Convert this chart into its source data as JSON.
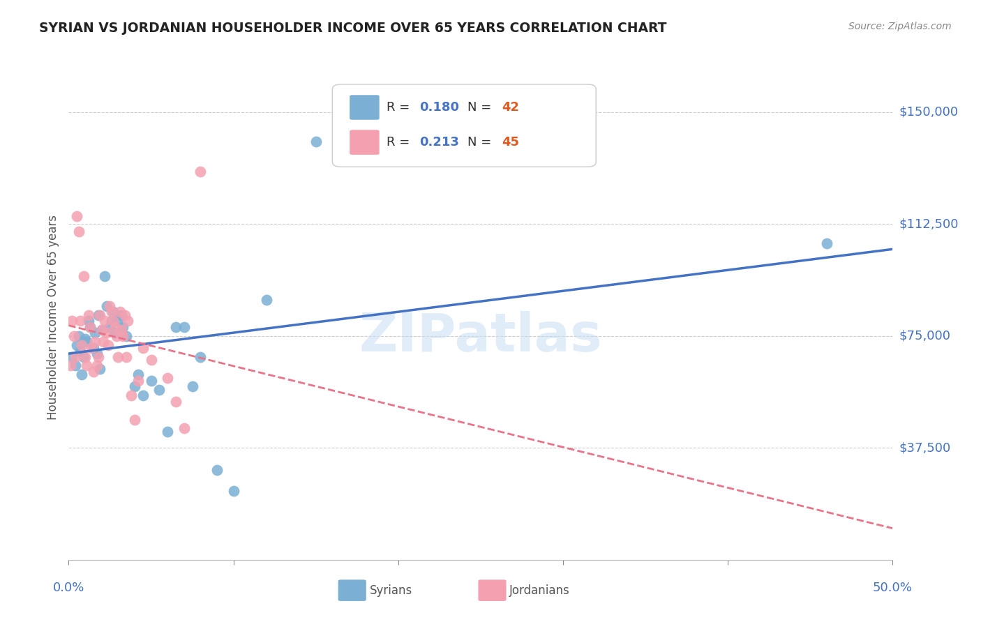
{
  "title": "SYRIAN VS JORDANIAN HOUSEHOLDER INCOME OVER 65 YEARS CORRELATION CHART",
  "source": "Source: ZipAtlas.com",
  "ylabel": "Householder Income Over 65 years",
  "xlim": [
    0.0,
    0.5
  ],
  "ylim": [
    0,
    162500
  ],
  "yticks": [
    37500,
    75000,
    112500,
    150000
  ],
  "ytick_labels": [
    "$37,500",
    "$75,000",
    "$112,500",
    "$150,000"
  ],
  "xticks": [
    0.0,
    0.1,
    0.2,
    0.3,
    0.4,
    0.5
  ],
  "syrian_color": "#7bafd4",
  "jordanian_color": "#f4a0b0",
  "syrian_line_color": "#4472c4",
  "jordanian_line_color": "#e8748a",
  "background_color": "#ffffff",
  "grid_color": "#cccccc",
  "R_syrian": 0.18,
  "N_syrian": 42,
  "R_jordanian": 0.213,
  "N_jordanian": 45,
  "watermark": "ZIPatlas",
  "title_color": "#222222",
  "axis_label_color": "#4472c4",
  "tick_label_color": "#4472c4",
  "source_color": "#888888",
  "N_color": "#e05a20",
  "syrian_x": [
    0.002,
    0.004,
    0.005,
    0.006,
    0.007,
    0.008,
    0.009,
    0.01,
    0.011,
    0.012,
    0.013,
    0.015,
    0.016,
    0.017,
    0.018,
    0.019,
    0.02,
    0.022,
    0.023,
    0.025,
    0.026,
    0.027,
    0.028,
    0.03,
    0.032,
    0.033,
    0.035,
    0.04,
    0.042,
    0.045,
    0.05,
    0.055,
    0.06,
    0.065,
    0.07,
    0.075,
    0.08,
    0.09,
    0.1,
    0.12,
    0.15,
    0.46
  ],
  "syrian_y": [
    68000,
    65000,
    72000,
    75000,
    70000,
    62000,
    68000,
    74000,
    73000,
    80000,
    78000,
    71000,
    76000,
    69000,
    82000,
    64000,
    77000,
    95000,
    85000,
    78000,
    80000,
    83000,
    76000,
    80000,
    82000,
    78000,
    75000,
    58000,
    62000,
    55000,
    60000,
    57000,
    43000,
    78000,
    78000,
    58000,
    68000,
    30000,
    23000,
    87000,
    140000,
    106000
  ],
  "jordanian_x": [
    0.001,
    0.002,
    0.003,
    0.004,
    0.005,
    0.006,
    0.007,
    0.008,
    0.009,
    0.01,
    0.011,
    0.012,
    0.013,
    0.014,
    0.015,
    0.016,
    0.017,
    0.018,
    0.019,
    0.02,
    0.021,
    0.022,
    0.023,
    0.024,
    0.025,
    0.026,
    0.027,
    0.028,
    0.029,
    0.03,
    0.031,
    0.032,
    0.033,
    0.034,
    0.035,
    0.036,
    0.038,
    0.04,
    0.042,
    0.045,
    0.05,
    0.06,
    0.065,
    0.07,
    0.08
  ],
  "jordanian_y": [
    65000,
    80000,
    75000,
    68000,
    115000,
    110000,
    80000,
    72000,
    95000,
    68000,
    65000,
    82000,
    78000,
    71000,
    63000,
    73000,
    65000,
    68000,
    82000,
    77000,
    73000,
    80000,
    76000,
    72000,
    85000,
    83000,
    80000,
    78000,
    75000,
    68000,
    83000,
    77000,
    75000,
    82000,
    68000,
    80000,
    55000,
    47000,
    60000,
    71000,
    67000,
    61000,
    53000,
    44000,
    130000
  ]
}
